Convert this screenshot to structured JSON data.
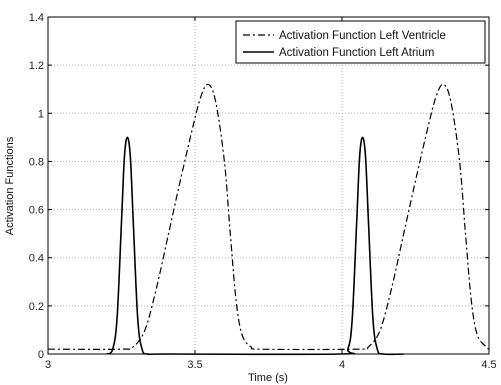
{
  "chart_data": {
    "type": "line",
    "title": "",
    "xlabel": "Time (s)",
    "ylabel": "Activation Functions",
    "xlim": [
      3,
      4.5
    ],
    "ylim": [
      0,
      1.4
    ],
    "x_ticks": [
      "3",
      "3.5",
      "4",
      "4.5"
    ],
    "y_ticks": [
      "0",
      "0.2",
      "0.4",
      "0.6",
      "0.8",
      "1",
      "1.2",
      "1.4"
    ],
    "grid": true,
    "legend_position": "top-right",
    "series": [
      {
        "name": "Activation Function Left Ventricle",
        "style": "dash-dot",
        "color": "#000000",
        "x": [
          3.0,
          3.25,
          3.29,
          3.33,
          3.37,
          3.41,
          3.45,
          3.49,
          3.52,
          3.545,
          3.57,
          3.6,
          3.62,
          3.64,
          3.66,
          3.69,
          3.73,
          4.05,
          4.09,
          4.13,
          4.17,
          4.21,
          4.25,
          4.29,
          4.32,
          4.345,
          4.37,
          4.4,
          4.42,
          4.44,
          4.46,
          4.49,
          4.5
        ],
        "values": [
          0.02,
          0.02,
          0.03,
          0.1,
          0.28,
          0.5,
          0.72,
          0.93,
          1.07,
          1.12,
          1.05,
          0.8,
          0.5,
          0.22,
          0.08,
          0.03,
          0.02,
          0.02,
          0.03,
          0.1,
          0.28,
          0.5,
          0.72,
          0.93,
          1.07,
          1.12,
          1.05,
          0.8,
          0.5,
          0.22,
          0.08,
          0.03,
          0.02
        ]
      },
      {
        "name": "Activation Function Left Atrium",
        "style": "solid",
        "color": "#000000",
        "x": [
          3.0,
          3.2,
          3.22,
          3.235,
          3.25,
          3.26,
          3.27,
          3.28,
          3.29,
          3.305,
          3.32,
          3.34,
          3.41,
          3.99,
          4.02,
          4.035,
          4.05,
          4.06,
          4.07,
          4.08,
          4.09,
          4.105,
          4.12,
          4.14,
          4.21
        ],
        "values": [
          null,
          0.0,
          0.02,
          0.15,
          0.55,
          0.82,
          0.9,
          0.82,
          0.55,
          0.15,
          0.02,
          0.0,
          0.0,
          0.0,
          0.02,
          0.15,
          0.55,
          0.82,
          0.9,
          0.82,
          0.55,
          0.15,
          0.02,
          0.0,
          0.0
        ]
      }
    ]
  }
}
